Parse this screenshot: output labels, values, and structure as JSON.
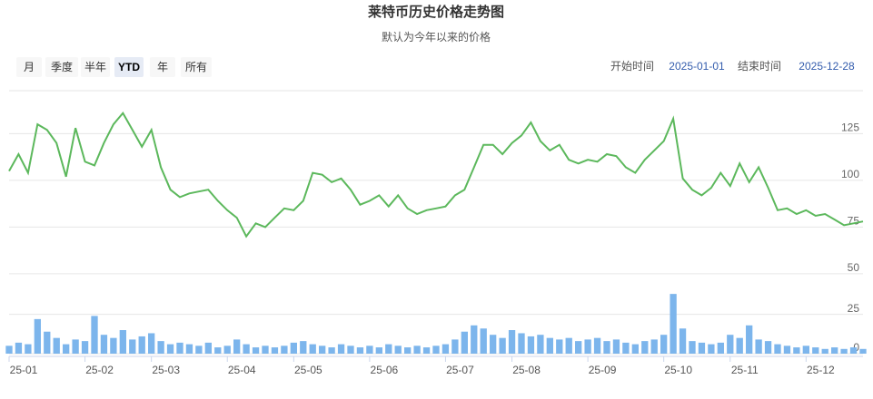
{
  "header": {
    "title": "莱特币历史价格走势图",
    "subtitle": "默认为今年以来的价格"
  },
  "range_selector": {
    "buttons": [
      "月",
      "季度",
      "半年",
      "YTD",
      "年",
      "所有"
    ],
    "selected": 3
  },
  "date_inputs": {
    "start_label": "开始时间",
    "start": "2025-01-01",
    "end_label": "结束时间",
    "end": "2025-12-28"
  },
  "chart_data": {
    "type": "line",
    "categories": [
      "25-01",
      null,
      null,
      null,
      null,
      null,
      null,
      null,
      "25-02",
      null,
      null,
      null,
      null,
      null,
      null,
      "25-03",
      null,
      null,
      null,
      null,
      null,
      null,
      null,
      "25-04",
      null,
      null,
      null,
      null,
      null,
      null,
      "25-05",
      null,
      null,
      null,
      null,
      null,
      null,
      null,
      "25-06",
      null,
      null,
      null,
      null,
      null,
      null,
      null,
      "25-07",
      null,
      null,
      null,
      null,
      null,
      null,
      "25-08",
      null,
      null,
      null,
      null,
      null,
      null,
      null,
      "25-09",
      null,
      null,
      null,
      null,
      null,
      null,
      null,
      "25-10",
      null,
      null,
      null,
      null,
      null,
      null,
      "25-11",
      null,
      null,
      null,
      null,
      null,
      null,
      null,
      "25-12",
      null,
      null,
      null,
      null,
      null,
      null
    ],
    "series": [
      {
        "type": "line",
        "color": "#5cb85c",
        "values": [
          105,
          114,
          104,
          130,
          127,
          120,
          102,
          128,
          110,
          108,
          120,
          130,
          136,
          127,
          118,
          127,
          107,
          95,
          91,
          93,
          94,
          95,
          89,
          84,
          80,
          70,
          77,
          75,
          80,
          85,
          84,
          89,
          104,
          103,
          99,
          101,
          95,
          87,
          89,
          92,
          86,
          92,
          85,
          82,
          84,
          85,
          86,
          92,
          95,
          107,
          119,
          119,
          114,
          120,
          124,
          131,
          121,
          116,
          119,
          111,
          109,
          111,
          110,
          114,
          113,
          107,
          104,
          111,
          116,
          121,
          133,
          101,
          95,
          92,
          96,
          104,
          97,
          109,
          99,
          107,
          96,
          84,
          85,
          82,
          84,
          81,
          82,
          79,
          76,
          77,
          78
        ]
      },
      {
        "type": "bar",
        "axis": "y2",
        "color": "#7cb5ec",
        "values": [
          5,
          7,
          6,
          22,
          14,
          10,
          6,
          9,
          8,
          24,
          12,
          10,
          15,
          9,
          11,
          13,
          8,
          6,
          7,
          6,
          5,
          7,
          4,
          5,
          9,
          6,
          4,
          5,
          4,
          5,
          7,
          8,
          6,
          5,
          4,
          6,
          5,
          4,
          5,
          4,
          6,
          5,
          4,
          5,
          4,
          5,
          6,
          9,
          14,
          18,
          16,
          12,
          10,
          15,
          13,
          11,
          12,
          10,
          9,
          10,
          8,
          9,
          10,
          8,
          9,
          7,
          6,
          8,
          9,
          12,
          38,
          16,
          8,
          7,
          6,
          7,
          12,
          10,
          18,
          9,
          8,
          6,
          5,
          4,
          5,
          4,
          3,
          4,
          3,
          4,
          3
        ]
      }
    ],
    "ylim": [
      48,
      148
    ],
    "yticks": [
      50,
      75,
      100,
      125
    ],
    "y2lim": [
      0,
      45
    ],
    "y2ticks": [
      0,
      25
    ],
    "grid": true
  }
}
